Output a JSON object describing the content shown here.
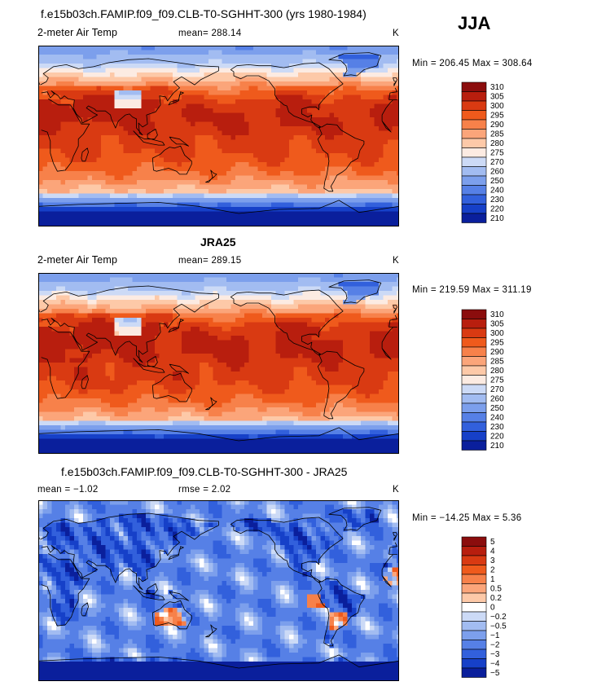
{
  "season": "JJA",
  "units": "K",
  "panels": [
    {
      "title": "f.e15b03ch.FAMIP.f09_f09.CLB-T0-SGHHT-300 (yrs 1980-1984)",
      "title_bold": false,
      "variable": "2-meter Air Temp",
      "left_stat": "",
      "mean": "mean= 288.14",
      "units": "K",
      "minmax": "Min = 206.45 Max = 308.64",
      "palette": "abs"
    },
    {
      "title": "JRA25",
      "title_bold": true,
      "variable": "2-meter Air Temp",
      "left_stat": "",
      "mean": "mean= 289.15",
      "units": "K",
      "minmax": "Min = 219.59 Max = 311.19",
      "palette": "abs"
    },
    {
      "title": "f.e15b03ch.FAMIP.f09_f09.CLB-T0-SGHHT-300 - JRA25",
      "title_bold": false,
      "variable": "",
      "left_stat": "mean =   −1.02",
      "mean": "rmse =    2.02",
      "units": "K",
      "minmax": "Min = −14.25 Max =    5.36",
      "palette": "diff"
    }
  ],
  "chart_data": [
    {
      "type": "heatmap",
      "title": "f.e15b03ch.FAMIP.f09_f09.CLB-T0-SGHHT-300 (yrs 1980-1984)",
      "subtitle": "2-meter Air Temp",
      "units": "K",
      "mean": 288.14,
      "min": 206.45,
      "max": 308.64,
      "colorbar_levels": [
        "310",
        "305",
        "300",
        "295",
        "290",
        "285",
        "280",
        "275",
        "270",
        "260",
        "250",
        "240",
        "230",
        "220",
        "210"
      ],
      "colorbar_colors": [
        "#8b0d0d",
        "#b81e0e",
        "#d93a12",
        "#ef5a1c",
        "#f7814a",
        "#fba57a",
        "#fdc9a8",
        "#fcebe2",
        "#ccdaf6",
        "#a2bcf1",
        "#7c9fec",
        "#5680e6",
        "#3260dc",
        "#1640c8",
        "#0a1f9c"
      ],
      "grid": false,
      "legend_placement": "right"
    },
    {
      "type": "heatmap",
      "title": "JRA25",
      "subtitle": "2-meter Air Temp",
      "units": "K",
      "mean": 289.15,
      "min": 219.59,
      "max": 311.19,
      "colorbar_levels": [
        "310",
        "305",
        "300",
        "295",
        "290",
        "285",
        "280",
        "275",
        "270",
        "260",
        "250",
        "240",
        "230",
        "220",
        "210"
      ],
      "colorbar_colors": [
        "#8b0d0d",
        "#b81e0e",
        "#d93a12",
        "#ef5a1c",
        "#f7814a",
        "#fba57a",
        "#fdc9a8",
        "#fcebe2",
        "#ccdaf6",
        "#a2bcf1",
        "#7c9fec",
        "#5680e6",
        "#3260dc",
        "#1640c8",
        "#0a1f9c"
      ],
      "grid": false,
      "legend_placement": "right"
    },
    {
      "type": "heatmap",
      "title": "f.e15b03ch.FAMIP.f09_f09.CLB-T0-SGHHT-300 - JRA25",
      "units": "K",
      "mean": -1.02,
      "rmse": 2.02,
      "min": -14.25,
      "max": 5.36,
      "colorbar_levels": [
        "5",
        "4",
        "3",
        "2",
        "1",
        "0.5",
        "0.2",
        "0",
        "−0.2",
        "−0.5",
        "−1",
        "−2",
        "−3",
        "−4",
        "−5"
      ],
      "colorbar_colors": [
        "#8b0d0d",
        "#b81e0e",
        "#d93a12",
        "#ef5a1c",
        "#f7814a",
        "#fba57a",
        "#fdc9a8",
        "#ffffff",
        "#ccdaf6",
        "#a2bcf1",
        "#7c9fec",
        "#5680e6",
        "#3260dc",
        "#1640c8",
        "#0a1f9c"
      ],
      "grid": false,
      "legend_placement": "right"
    }
  ]
}
